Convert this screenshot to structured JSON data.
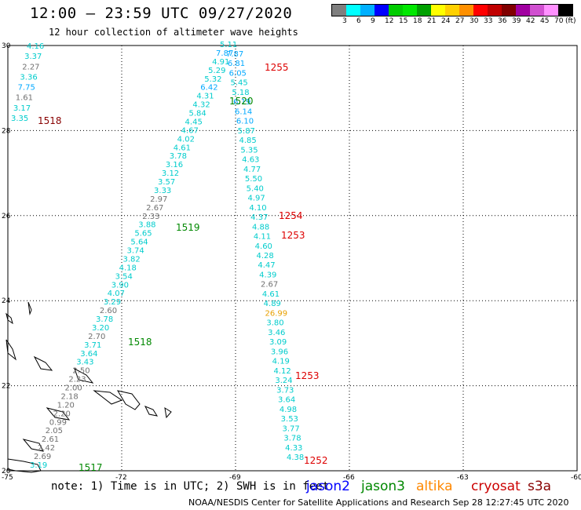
{
  "header": {
    "title": "12:00 – 23:59 UTC 09/27/2020",
    "subtitle": "12 hour collection of altimeter wave heights"
  },
  "color_scale": {
    "colors": [
      "#7f7f7f",
      "#00ffff",
      "#00b0ff",
      "#0000ff",
      "#00cc00",
      "#00e800",
      "#00a000",
      "#ffff00",
      "#ffd000",
      "#ff9000",
      "#ff0000",
      "#c00000",
      "#800000",
      "#a000a0",
      "#d050d0",
      "#ff90ff",
      "#000000"
    ],
    "labels": [
      "3",
      "6",
      "9",
      "12",
      "15",
      "18",
      "21",
      "24",
      "27",
      "30",
      "33",
      "36",
      "39",
      "42",
      "45",
      "70",
      "(ft)"
    ]
  },
  "axes": {
    "lat_labels": [
      "30",
      "28",
      "26",
      "24",
      "22",
      "20"
    ],
    "lon_labels": [
      "-75",
      "-72",
      "-69",
      "-66",
      "-63",
      "-60"
    ]
  },
  "footer": {
    "note": "note:  1) Time is in UTC; 2) SWH is in feet",
    "credit": "NOAA/NESDIS Center for Satellite Applications and Research    Sep 28 12:27:45 UTC 2020",
    "satellites": [
      {
        "name": "jason2",
        "color": "#0000ff"
      },
      {
        "name": "jason3",
        "color": "#008800"
      },
      {
        "name": "altika",
        "color": "#ff8800"
      },
      {
        "name": "cryosat",
        "color": "#cc0000"
      },
      {
        "name": "s3a",
        "color": "#880000"
      }
    ]
  },
  "time_labels": [
    {
      "text": "1255",
      "color": "#dd0000"
    },
    {
      "text": "1518",
      "color": "#880000"
    },
    {
      "text": "1520",
      "color": "#008800"
    },
    {
      "text": "1254",
      "color": "#dd0000"
    },
    {
      "text": "1519",
      "color": "#008800"
    },
    {
      "text": "1253",
      "color": "#dd0000"
    },
    {
      "text": "1518",
      "color": "#008800"
    },
    {
      "text": "1253",
      "color": "#dd0000"
    },
    {
      "text": "1517",
      "color": "#008800"
    },
    {
      "text": "1252",
      "color": "#dd0000"
    }
  ],
  "tracks": [
    {
      "id": "track-a",
      "values": [
        "4.16",
        "3.37",
        "2.27",
        "3.36",
        "7.75",
        "1.61",
        "3.17",
        "3.35"
      ]
    },
    {
      "id": "track-b",
      "values": [
        "5.11",
        "7.87",
        "4.91",
        "5.29",
        "5.32",
        "6.42",
        "4.31",
        "4.32",
        "5.84",
        "4.45",
        "4.67",
        "4.02",
        "4.61",
        "3.78",
        "3.16",
        "3.12",
        "3.57",
        "3.33",
        "2.97",
        "2.67",
        "2.33",
        "3.88",
        "5.65",
        "5.64",
        "3.74",
        "3.82",
        "4.18",
        "3.54",
        "3.90",
        "4.07",
        "3.29",
        "2.60",
        "3.78",
        "3.20",
        "2.70",
        "3.71",
        "3.64",
        "3.43",
        "2.50",
        "2.23",
        "2.00",
        "2.18",
        "1.20",
        "2.20",
        "0.99",
        "2.05",
        "2.61",
        "2.42",
        "2.69",
        "3.19"
      ]
    },
    {
      "id": "track-c",
      "values": [
        "7.87",
        "6.81",
        "6.05",
        "5.45",
        "5.18",
        "6.19",
        "6.14",
        "6.10",
        "5.87",
        "4.85",
        "5.35",
        "4.63",
        "4.77",
        "5.50",
        "5.40",
        "4.97",
        "4.10",
        "4.37",
        "4.88",
        "4.11",
        "4.60",
        "4.28",
        "4.47",
        "4.39",
        "2.67",
        "4.61",
        "4.89",
        "26.99",
        "3.80",
        "3.46",
        "3.09",
        "3.96",
        "4.19",
        "4.12",
        "3.24",
        "3.73",
        "3.64",
        "4.98",
        "3.53",
        "3.77",
        "3.78",
        "4.33",
        "4.38"
      ]
    }
  ]
}
